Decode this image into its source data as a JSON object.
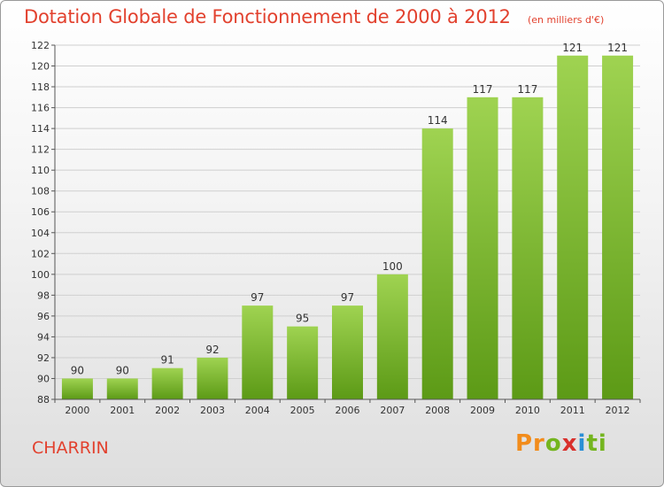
{
  "title": "Dotation Globale de Fonctionnement de 2000 à 2012",
  "subtitle": "(en milliers d'€)",
  "commune": "CHARRIN",
  "logo": {
    "p1": "Pr",
    "p2": "o",
    "p3": "x",
    "p4": "i",
    "p5": "ti"
  },
  "colors": {
    "title": "#e2412e",
    "bar_top": "#9fd351",
    "bar_bottom": "#5c9a16",
    "grid": "#cfcfcf",
    "axis": "#555555"
  },
  "chart_data": {
    "type": "bar",
    "title": "Dotation Globale de Fonctionnement de 2000 à 2012",
    "subtitle": "(en milliers d'€)",
    "categories": [
      "2000",
      "2001",
      "2002",
      "2003",
      "2004",
      "2005",
      "2006",
      "2007",
      "2008",
      "2009",
      "2010",
      "2011",
      "2012"
    ],
    "values": [
      90,
      90,
      91,
      92,
      97,
      95,
      97,
      100,
      114,
      117,
      117,
      121,
      121
    ],
    "ylim": [
      88,
      122
    ],
    "yticks": [
      88,
      90,
      92,
      94,
      96,
      98,
      100,
      102,
      104,
      106,
      108,
      110,
      112,
      114,
      116,
      118,
      120,
      122
    ],
    "xlabel": "",
    "ylabel": "",
    "grid": true,
    "data_labels": true,
    "legend": "none"
  }
}
